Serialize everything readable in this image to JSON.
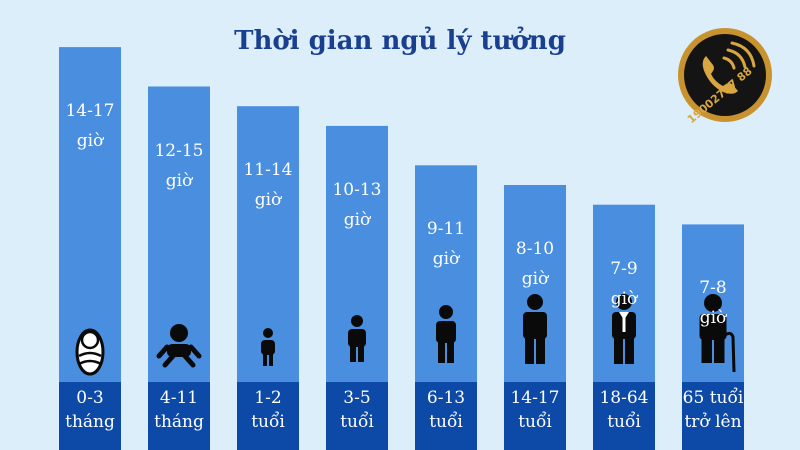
{
  "colors": {
    "background": "#dbeefa",
    "bar": "#4a8ee0",
    "bar_base": "#0d4aa8",
    "title": "#1b3f8f",
    "icon": "#0a0a0a",
    "logo_ring": "#c8932e",
    "logo_bg": "#141414"
  },
  "logo": {
    "text": "19002727 88",
    "icon": "phone-icon"
  },
  "chart_data": {
    "type": "bar",
    "title": "Thời gian ngủ lý tưởng",
    "ylabel": "",
    "xlabel": "",
    "ylim": [
      0,
      18
    ],
    "categories": [
      [
        "0-3",
        "tháng"
      ],
      [
        "4-11",
        "tháng"
      ],
      [
        "1-2",
        "tuổi"
      ],
      [
        "3-5",
        "tuổi"
      ],
      [
        "6-13",
        "tuổi"
      ],
      [
        "14-17",
        "tuổi"
      ],
      [
        "18-64",
        "tuổi"
      ],
      [
        "65 tuổi",
        "trở lên"
      ]
    ],
    "values": [
      17,
      15,
      14,
      13,
      11,
      10,
      9,
      8
    ],
    "data_labels": [
      [
        "14-17",
        "giờ"
      ],
      [
        "12-15",
        "giờ"
      ],
      [
        "11-14",
        "giờ"
      ],
      [
        "10-13",
        "giờ"
      ],
      [
        "9-11",
        "giờ"
      ],
      [
        "8-10",
        "giờ"
      ],
      [
        "7-9",
        "giờ"
      ],
      [
        "7-8",
        "giờ"
      ]
    ],
    "icons": [
      "swaddled-baby-icon",
      "crawling-baby-icon",
      "toddler-icon",
      "child-icon",
      "kid-icon",
      "teen-icon",
      "adult-icon",
      "elderly-with-cane-icon"
    ]
  }
}
